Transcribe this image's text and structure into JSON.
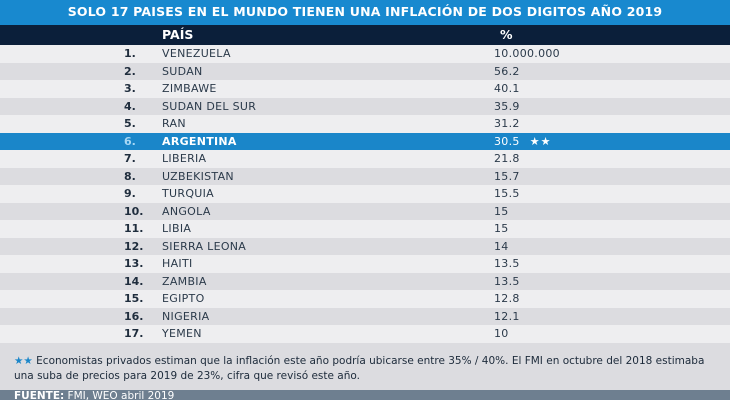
{
  "chart_data": {
    "type": "table",
    "title": "SOLO 17 PAISES EN EL MUNDO TIENEN UNA INFLACIÓN DE DOS DIGITOS AÑO 2019",
    "columns": [
      "PAÍS",
      "%"
    ],
    "rows": [
      {
        "rank": "1.",
        "country": "VENEZUELA",
        "value": "10.000.000"
      },
      {
        "rank": "2.",
        "country": "SUDAN",
        "value": "56.2"
      },
      {
        "rank": "3.",
        "country": "ZIMBAWE",
        "value": "40.1"
      },
      {
        "rank": "4.",
        "country": "SUDAN DEL SUR",
        "value": "35.9"
      },
      {
        "rank": "5.",
        "country": "RAN",
        "value": "31.2"
      },
      {
        "rank": "6.",
        "country": "ARGENTINA",
        "value": "30.5",
        "mark": "★★",
        "highlight": true
      },
      {
        "rank": "7.",
        "country": "LIBERIA",
        "value": "21.8"
      },
      {
        "rank": "8.",
        "country": "UZBEKISTAN",
        "value": "15.7"
      },
      {
        "rank": "9.",
        "country": "TURQUIA",
        "value": "15.5"
      },
      {
        "rank": "10.",
        "country": "ANGOLA",
        "value": "15"
      },
      {
        "rank": "11.",
        "country": "LIBIA",
        "value": "15"
      },
      {
        "rank": "12.",
        "country": "SIERRA LEONA",
        "value": "14"
      },
      {
        "rank": "13.",
        "country": "HAITI",
        "value": "13.5"
      },
      {
        "rank": "14.",
        "country": "ZAMBIA",
        "value": "13.5"
      },
      {
        "rank": "15.",
        "country": "EGIPTO",
        "value": "12.8"
      },
      {
        "rank": "16.",
        "country": "NIGERIA",
        "value": "12.1"
      },
      {
        "rank": "17.",
        "country": "YEMEN",
        "value": "10"
      }
    ],
    "note_mark": "★★",
    "note": "Economistas privados estiman que la inflación este año  podría ubicarse entre 35% / 40%. El FMI en octubre del 2018 estimaba una suba de precios para 2019 de 23%, cifra que revisó este año.",
    "source_label": "FUENTE:",
    "source": "FMI, WEO abril 2019"
  },
  "colors": {
    "title_bg": "#1889cf",
    "header_bg": "#0b1f3a",
    "highlight_bg": "#1a86c9",
    "source_bg": "#6e7f90"
  }
}
